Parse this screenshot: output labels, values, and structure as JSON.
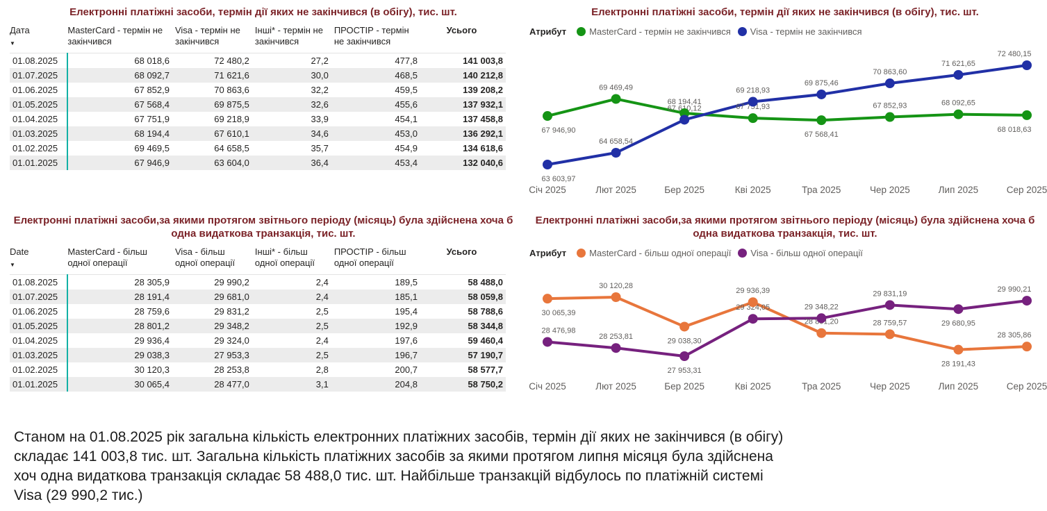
{
  "colors": {
    "title_maroon": "#7B2328",
    "teal_accent": "#12B1A5",
    "text_dark": "#252423",
    "text_gray": "#605E5C",
    "row_stripe": "#ECECEC",
    "mastercard_circulation": "#159415",
    "visa_circulation": "#2130A6",
    "mastercard_transactions": "#E8763C",
    "visa_transactions": "#76217E"
  },
  "tables": {
    "circulation": {
      "title": "Електронні платіжні засоби, термін дії яких не закінчився (в обігу), тис. шт.",
      "sort_icon": "▼",
      "columns": [
        "Дата",
        "MasterCard - термін не закінчився",
        "Visa - термін не закінчився",
        "Інші* - термін не закінчився",
        "ПРОСТІР - термін не закінчився",
        "Усього"
      ],
      "rows": [
        [
          "01.08.2025",
          "68 018,6",
          "72 480,2",
          "27,2",
          "477,8",
          "141 003,8"
        ],
        [
          "01.07.2025",
          "68 092,7",
          "71 621,6",
          "30,0",
          "468,5",
          "140 212,8"
        ],
        [
          "01.06.2025",
          "67 852,9",
          "70 863,6",
          "32,2",
          "459,5",
          "139 208,2"
        ],
        [
          "01.05.2025",
          "67 568,4",
          "69 875,5",
          "32,6",
          "455,6",
          "137 932,1"
        ],
        [
          "01.04.2025",
          "67 751,9",
          "69 218,9",
          "33,9",
          "454,1",
          "137 458,8"
        ],
        [
          "01.03.2025",
          "68 194,4",
          "67 610,1",
          "34,6",
          "453,0",
          "136 292,1"
        ],
        [
          "01.02.2025",
          "69 469,5",
          "64 658,5",
          "35,7",
          "454,9",
          "134 618,6"
        ],
        [
          "01.01.2025",
          "67 946,9",
          "63 604,0",
          "36,4",
          "453,4",
          "132 040,6"
        ]
      ]
    },
    "transactions": {
      "title": "Електронні платіжні засоби,за якими протягом звітнього періоду (місяць) була здійснена хоча б одна видаткова транзакція, тис. шт.",
      "sort_icon": "▼",
      "columns": [
        "Date",
        "MasterCard - більш одної операції",
        "Visa - більш одної операції",
        "Інші* - більш одної операції",
        "ПРОСТІР - більш одної операції",
        "Усього"
      ],
      "rows": [
        [
          "01.08.2025",
          "28 305,9",
          "29 990,2",
          "2,4",
          "189,5",
          "58 488,0"
        ],
        [
          "01.07.2025",
          "28 191,4",
          "29 681,0",
          "2,4",
          "185,1",
          "58 059,8"
        ],
        [
          "01.06.2025",
          "28 759,6",
          "29 831,2",
          "2,5",
          "195,4",
          "58 788,6"
        ],
        [
          "01.05.2025",
          "28 801,2",
          "29 348,2",
          "2,5",
          "192,9",
          "58 344,8"
        ],
        [
          "01.04.2025",
          "29 936,4",
          "29 324,0",
          "2,4",
          "197,6",
          "59 460,4"
        ],
        [
          "01.03.2025",
          "29 038,3",
          "27 953,3",
          "2,5",
          "196,7",
          "57 190,7"
        ],
        [
          "01.02.2025",
          "30 120,3",
          "28 253,8",
          "2,8",
          "200,7",
          "58 577,7"
        ],
        [
          "01.01.2025",
          "30 065,4",
          "28 477,0",
          "3,1",
          "204,8",
          "58 750,2"
        ]
      ]
    }
  },
  "chart_data": [
    {
      "id": "circulation",
      "type": "line",
      "title": "Електронні платіжні засоби, термін дії яких не закінчився (в обігу), тис. шт.",
      "legend_title": "Атрибут",
      "legend_position": "top-left",
      "grid": false,
      "xlabel": "",
      "ylabel": "",
      "categories": [
        "Січ 2025",
        "Лют 2025",
        "Бер 2025",
        "Кві 2025",
        "Тра 2025",
        "Чер 2025",
        "Лип 2025",
        "Сер 2025"
      ],
      "ylim": [
        63603.97,
        72480.15
      ],
      "series": [
        {
          "name": "MasterCard - термін не закінчився",
          "color": "#159415",
          "values": [
            67946.9,
            69469.49,
            68194.41,
            67751.93,
            67568.41,
            67852.93,
            68092.65,
            68018.63
          ],
          "labels": [
            "67 946,90",
            "69 469,49",
            "68 194,41",
            "67 751,93",
            "67 568,41",
            "67 852,93",
            "68 092,65",
            "68 018,63"
          ],
          "label_pos": [
            "below",
            "above",
            "above",
            "above",
            "below",
            "above",
            "above",
            "below"
          ]
        },
        {
          "name": "Visa - термін не закінчився",
          "color": "#2130A6",
          "values": [
            63603.97,
            64658.54,
            67610.12,
            69218.93,
            69875.46,
            70863.6,
            71621.65,
            72480.15
          ],
          "labels": [
            "63 603,97",
            "64 658,54",
            "67 610,12",
            "69 218,93",
            "69 875,46",
            "70 863,60",
            "71 621,65",
            "72 480,15"
          ],
          "label_pos": [
            "below",
            "above",
            "above",
            "above",
            "above",
            "above",
            "above",
            "above"
          ]
        }
      ]
    },
    {
      "id": "transactions",
      "type": "line",
      "title": "Електронні платіжні засоби,за якими протягом звітнього періоду (місяць) була здійснена хоча б одна видаткова транзакція, тис. шт.",
      "legend_title": "Атрибут",
      "legend_position": "top-left",
      "grid": false,
      "xlabel": "",
      "ylabel": "",
      "categories": [
        "Січ 2025",
        "Лют 2025",
        "Бер 2025",
        "Кві 2025",
        "Тра 2025",
        "Чер 2025",
        "Лип 2025",
        "Сер 2025"
      ],
      "ylim": [
        27953.31,
        30120.28
      ],
      "series": [
        {
          "name": "MasterCard - більш одної операції",
          "color": "#E8763C",
          "values": [
            30065.39,
            30120.28,
            29038.3,
            29936.39,
            28801.2,
            28759.57,
            28191.43,
            28305.86
          ],
          "labels": [
            "30 065,39",
            "30 120,28",
            "29 038,30",
            "29 936,39",
            "28 801,20",
            "28 759,57",
            "28 191,43",
            "28 305,86"
          ],
          "label_pos": [
            "below",
            "above",
            "below",
            "above",
            "above",
            "above",
            "below",
            "above"
          ]
        },
        {
          "name": "Visa - більш одної операції",
          "color": "#76217E",
          "values": [
            28476.98,
            28253.81,
            27953.31,
            29324.05,
            29348.22,
            29831.19,
            29680.95,
            29990.21
          ],
          "labels": [
            "28 476,98",
            "28 253,81",
            "27 953,31",
            "29 324,05",
            "29 348,22",
            "29 831,19",
            "29 680,95",
            "29 990,21"
          ],
          "label_pos": [
            "above",
            "above",
            "below",
            "above",
            "above",
            "above",
            "below",
            "above"
          ]
        }
      ]
    }
  ],
  "summary": {
    "text": "Станом на 01.08.2025 рік загальна кількість електронних платіжних засобів, термін дії яких не закінчився (в обігу) складає 141 003,8 тис. шт. Загальна кількість платіжних засобів за якими протягом липня місяця була здійснена хоч одна видаткова транзакція складає 58 488,0 тис. шт. Найбільше транзакцій відбулось по платіжній системі Visa (29 990,2 тис.)"
  }
}
